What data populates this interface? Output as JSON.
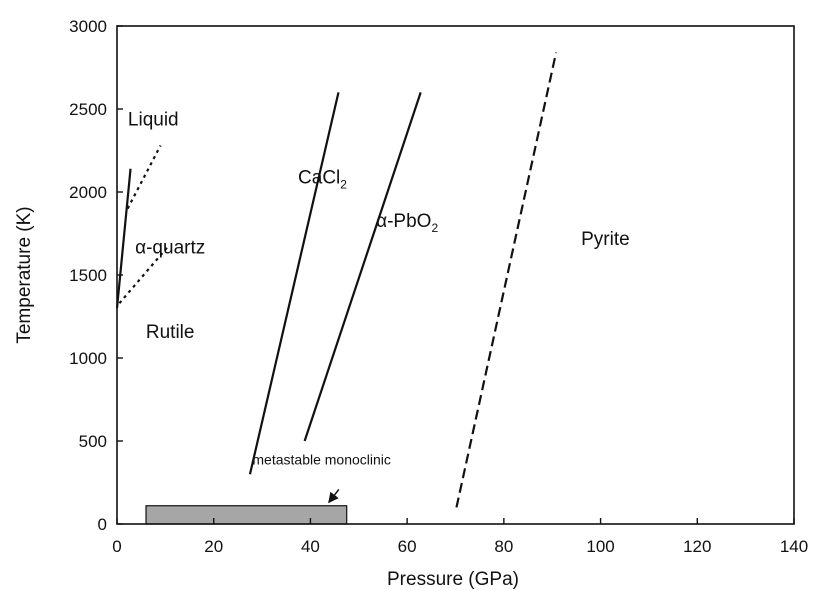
{
  "chart_data": {
    "type": "line",
    "title": "",
    "xlabel": "Pressure (GPa)",
    "ylabel": "Temperature (K)",
    "xlim": [
      0,
      140
    ],
    "ylim": [
      0,
      3000
    ],
    "xticks": [
      0,
      20,
      40,
      60,
      80,
      100,
      120,
      140
    ],
    "yticks": [
      0,
      500,
      1000,
      1500,
      2000,
      2500,
      3000
    ],
    "series": [
      {
        "style": "solid",
        "x": [
          0,
          2.8
        ],
        "y": [
          1300,
          2140
        ]
      },
      {
        "style": "dotted",
        "x": [
          2.2,
          9
        ],
        "y": [
          1900,
          2280
        ]
      },
      {
        "style": "dotted",
        "x": [
          0.5,
          10.5
        ],
        "y": [
          1330,
          1670
        ]
      },
      {
        "style": "solid",
        "x": [
          27.5,
          45.8
        ],
        "y": [
          300,
          2600
        ]
      },
      {
        "style": "solid",
        "x": [
          38.8,
          62.8
        ],
        "y": [
          500,
          2600
        ]
      },
      {
        "style": "dashed",
        "x": [
          70.2,
          90.8
        ],
        "y": [
          100,
          2840
        ]
      }
    ],
    "region_labels": [
      {
        "text": "Liquid",
        "x": 7.5,
        "y": 2400
      },
      {
        "text": "α-quartz",
        "x": 11,
        "y": 1630
      },
      {
        "text": "Rutile",
        "x": 11,
        "y": 1120
      },
      {
        "text": "CaCl",
        "sub": "2",
        "x": 42.5,
        "y": 2050
      },
      {
        "text": "α-PbO",
        "sub": "2",
        "x": 60,
        "y": 1790
      },
      {
        "text": "Pyrite",
        "x": 101,
        "y": 1680
      }
    ],
    "annotation": {
      "text": "metastable monoclinic",
      "x": 28,
      "y": 310,
      "arrow_to": [
        43.8,
        130
      ]
    },
    "rect": {
      "x0": 6,
      "x1": 47.5,
      "y0": 0,
      "y1": 110,
      "color": "#a6a6a6"
    },
    "grid": false,
    "legend": "none"
  }
}
